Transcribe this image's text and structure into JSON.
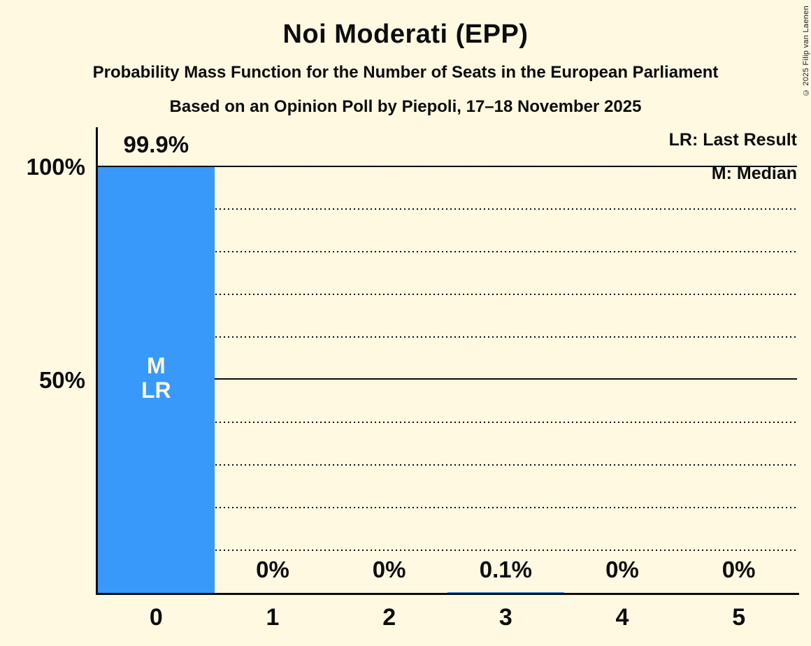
{
  "page": {
    "background_color": "#FFF9E2",
    "text_color": "#0D0D0D",
    "copyright": "© 2025 Filip van Laenen"
  },
  "header": {
    "title": "Noi Moderati (EPP)",
    "subtitle": "Probability Mass Function for the Number of Seats in the European Parliament",
    "poll_line": "Based on an Opinion Poll by Piepoli, 17–18 November 2025"
  },
  "legend": {
    "last_result": "LR: Last Result",
    "median": "M: Median"
  },
  "chart_data": {
    "type": "bar",
    "title": "Noi Moderati (EPP)",
    "subtitle": "Probability Mass Function for the Number of Seats in the European Parliament",
    "source_line": "Based on an Opinion Poll by Piepoli, 17–18 November 2025",
    "categories": [
      "0",
      "1",
      "2",
      "3",
      "4",
      "5"
    ],
    "values": [
      99.9,
      0,
      0,
      0.1,
      0,
      0
    ],
    "value_labels": [
      "99.9%",
      "0%",
      "0%",
      "0.1%",
      "0%",
      "0%"
    ],
    "xlabel": "",
    "ylabel": "",
    "ylim": [
      0,
      100
    ],
    "ytick_positions": [
      50,
      100
    ],
    "ytick_labels": [
      "50%",
      "100%"
    ],
    "dotted_gridlines_pct": [
      10,
      20,
      30,
      40,
      60,
      70,
      80,
      90,
      100
    ],
    "solid_lines_pct": [
      50,
      100
    ],
    "grid": "horizontal dotted every 10%",
    "legend_position": "top-right",
    "legend_entries": [
      "LR: Last Result",
      "M: Median"
    ],
    "bar_color": "#3899FA",
    "annotation_bar_index": 0,
    "annotation_lines": [
      "M",
      "LR"
    ],
    "median_seats": 0,
    "last_result_seats": 0
  }
}
